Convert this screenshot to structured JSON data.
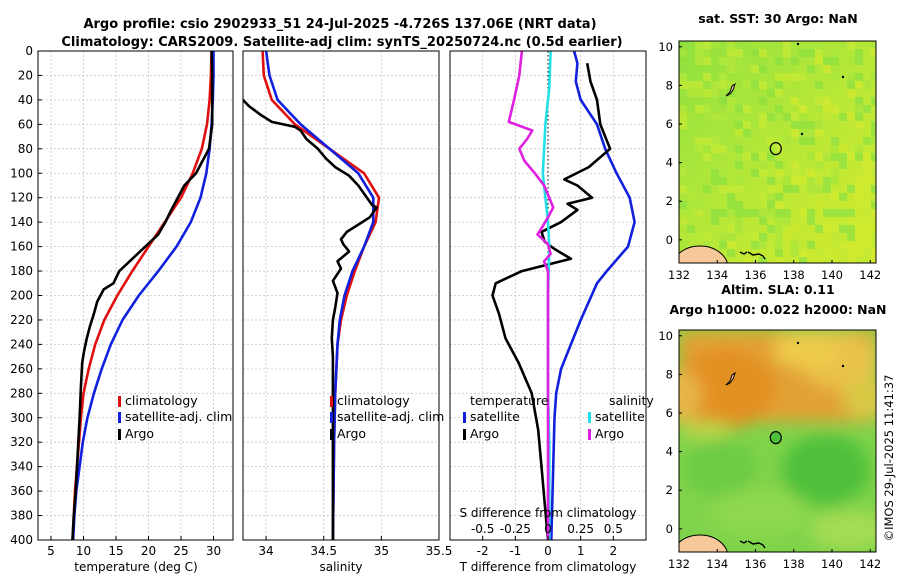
{
  "header": {
    "line1": "Argo profile: csio 2902933_51 24-Jul-2025 -4.726S 137.06E (NRT data)",
    "line2": "Climatology: CARS2009. Satellite-adj clim: synTS_20250724.nc (0.5d earlier)"
  },
  "watermark": "©IMOS 29-Jul-2025 11:41:37",
  "colors": {
    "red": "#e01010",
    "blue": "#1020dd",
    "black": "#000000",
    "cyan": "#22e0e8",
    "magenta": "#e020e0",
    "coast": "#f6c89a"
  },
  "chart_data": [
    {
      "type": "line",
      "name": "temperature",
      "xlabel": "temperature (deg C)",
      "ylabel": "depth",
      "xlim": [
        3,
        33
      ],
      "ylim": [
        400,
        0
      ],
      "xticks": [
        "5",
        "10",
        "15",
        "20",
        "25",
        "30"
      ],
      "yticks": [
        "0",
        "20",
        "40",
        "60",
        "80",
        "100",
        "120",
        "140",
        "160",
        "180",
        "200",
        "220",
        "240",
        "260",
        "280",
        "300",
        "320",
        "340",
        "360",
        "380",
        "400"
      ],
      "legend": [
        "climatology",
        "satellite-adj. clim",
        "Argo"
      ],
      "series": [
        {
          "name": "climatology",
          "color": "#e01010",
          "points": [
            [
              29.7,
              0
            ],
            [
              29.6,
              20
            ],
            [
              29.4,
              40
            ],
            [
              29.0,
              60
            ],
            [
              28.2,
              80
            ],
            [
              26.8,
              100
            ],
            [
              25,
              120
            ],
            [
              22.5,
              140
            ],
            [
              20,
              160
            ],
            [
              17.5,
              180
            ],
            [
              15.2,
              200
            ],
            [
              13.2,
              220
            ],
            [
              11.8,
              240
            ],
            [
              10.8,
              260
            ],
            [
              10.0,
              280
            ],
            [
              9.6,
              300
            ],
            [
              9.3,
              320
            ],
            [
              9.0,
              340
            ],
            [
              8.7,
              360
            ],
            [
              8.5,
              380
            ],
            [
              8.3,
              400
            ]
          ]
        },
        {
          "name": "satellite-adj. clim",
          "color": "#1020dd",
          "points": [
            [
              30.0,
              0
            ],
            [
              30.0,
              20
            ],
            [
              29.9,
              40
            ],
            [
              29.7,
              60
            ],
            [
              29.4,
              80
            ],
            [
              28.9,
              100
            ],
            [
              28,
              120
            ],
            [
              26.5,
              140
            ],
            [
              24.3,
              160
            ],
            [
              21.5,
              180
            ],
            [
              18.5,
              200
            ],
            [
              16,
              220
            ],
            [
              14.2,
              240
            ],
            [
              12.8,
              260
            ],
            [
              11.6,
              280
            ],
            [
              10.6,
              300
            ],
            [
              9.9,
              320
            ],
            [
              9.4,
              340
            ],
            [
              8.9,
              360
            ],
            [
              8.6,
              380
            ],
            [
              8.4,
              400
            ]
          ]
        },
        {
          "name": "Argo",
          "color": "#000000",
          "points": [
            [
              29.7,
              0
            ],
            [
              29.8,
              20
            ],
            [
              29.8,
              40
            ],
            [
              29.8,
              60
            ],
            [
              29.3,
              80
            ],
            [
              28.3,
              90
            ],
            [
              27.3,
              100
            ],
            [
              25.5,
              110
            ],
            [
              24.5,
              120
            ],
            [
              23.5,
              130
            ],
            [
              22.6,
              140
            ],
            [
              21.5,
              150
            ],
            [
              19.5,
              160
            ],
            [
              17.5,
              170
            ],
            [
              15.5,
              180
            ],
            [
              14.6,
              190
            ],
            [
              13.1,
              195
            ],
            [
              12.1,
              205
            ],
            [
              11.6,
              215
            ],
            [
              11.0,
              225
            ],
            [
              10.5,
              235
            ],
            [
              10.1,
              245
            ],
            [
              9.8,
              255
            ],
            [
              9.6,
              275
            ],
            [
              9.4,
              300
            ],
            [
              9.2,
              320
            ],
            [
              9.0,
              340
            ],
            [
              8.8,
              360
            ],
            [
              8.5,
              380
            ],
            [
              8.3,
              400
            ]
          ]
        }
      ]
    },
    {
      "type": "line",
      "name": "salinity",
      "xlabel": "salinity",
      "xlim": [
        33.8,
        35.5
      ],
      "ylim": [
        400,
        0
      ],
      "xticks": [
        "34",
        "34.5",
        "35",
        "35.5"
      ],
      "legend": [
        "climatology",
        "satellite-adj. clim",
        "Argo"
      ],
      "series": [
        {
          "name": "climatology",
          "color": "#e01010",
          "points": [
            [
              33.97,
              0
            ],
            [
              33.98,
              20
            ],
            [
              34.05,
              40
            ],
            [
              34.25,
              60
            ],
            [
              34.55,
              80
            ],
            [
              34.85,
              100
            ],
            [
              34.98,
              120
            ],
            [
              34.95,
              140
            ],
            [
              34.85,
              160
            ],
            [
              34.77,
              180
            ],
            [
              34.7,
              200
            ],
            [
              34.65,
              220
            ],
            [
              34.62,
              240
            ],
            [
              34.6,
              280
            ],
            [
              34.59,
              320
            ],
            [
              34.58,
              400
            ]
          ]
        },
        {
          "name": "satellite-adj. clim",
          "color": "#1020dd",
          "points": [
            [
              34.0,
              0
            ],
            [
              34.03,
              20
            ],
            [
              34.1,
              40
            ],
            [
              34.3,
              60
            ],
            [
              34.55,
              80
            ],
            [
              34.8,
              100
            ],
            [
              34.93,
              120
            ],
            [
              34.93,
              140
            ],
            [
              34.85,
              160
            ],
            [
              34.75,
              180
            ],
            [
              34.68,
              200
            ],
            [
              34.64,
              220
            ],
            [
              34.62,
              240
            ],
            [
              34.6,
              280
            ],
            [
              34.59,
              320
            ],
            [
              34.58,
              400
            ]
          ]
        },
        {
          "name": "Argo",
          "color": "#000000",
          "points": [
            [
              33.78,
              38
            ],
            [
              33.85,
              45
            ],
            [
              33.95,
              52
            ],
            [
              34.05,
              58
            ],
            [
              34.25,
              62
            ],
            [
              34.3,
              65
            ],
            [
              34.35,
              72
            ],
            [
              34.45,
              80
            ],
            [
              34.52,
              88
            ],
            [
              34.6,
              95
            ],
            [
              34.72,
              102
            ],
            [
              34.8,
              110
            ],
            [
              34.86,
              118
            ],
            [
              34.92,
              126
            ],
            [
              34.96,
              128
            ],
            [
              34.9,
              136
            ],
            [
              34.8,
              142
            ],
            [
              34.7,
              148
            ],
            [
              34.65,
              154
            ],
            [
              34.67,
              158
            ],
            [
              34.72,
              164
            ],
            [
              34.62,
              172
            ],
            [
              34.65,
              178
            ],
            [
              34.58,
              188
            ],
            [
              34.62,
              198
            ],
            [
              34.6,
              210
            ],
            [
              34.58,
              220
            ],
            [
              34.57,
              235
            ],
            [
              34.58,
              250
            ],
            [
              34.58,
              300
            ],
            [
              34.58,
              340
            ],
            [
              34.58,
              400
            ]
          ]
        }
      ]
    },
    {
      "type": "line",
      "name": "difference from climatology",
      "xlabel": "T difference from climatology",
      "x2label": "S difference from climatology",
      "xlim": [
        -3,
        3
      ],
      "ylim": [
        400,
        0
      ],
      "xticks": [
        "-2",
        "-1",
        "0",
        "1",
        "2"
      ],
      "x2ticks": [
        "-0.5",
        "-0.25",
        "0",
        "0.25",
        "0.5"
      ],
      "legend_titles": [
        "temperature",
        "salinity"
      ],
      "legend": [
        "satellite",
        "Argo",
        "satellite",
        "Argo"
      ],
      "series": [
        {
          "name": "temperature satellite",
          "color": "#1020dd",
          "axis": "T",
          "points": [
            [
              0.8,
              0
            ],
            [
              0.9,
              10
            ],
            [
              0.85,
              25
            ],
            [
              1.0,
              40
            ],
            [
              1.5,
              60
            ],
            [
              1.75,
              80
            ],
            [
              2.1,
              100
            ],
            [
              2.5,
              120
            ],
            [
              2.65,
              140
            ],
            [
              2.45,
              160
            ],
            [
              1.8,
              180
            ],
            [
              1.5,
              190
            ],
            [
              1.0,
              220
            ],
            [
              0.7,
              240
            ],
            [
              0.4,
              260
            ],
            [
              0.25,
              280
            ],
            [
              0.2,
              300
            ],
            [
              0.15,
              350
            ],
            [
              0.1,
              400
            ]
          ]
        },
        {
          "name": "temperature Argo",
          "color": "#000000",
          "axis": "T",
          "points": [
            [
              1.2,
              10
            ],
            [
              1.3,
              25
            ],
            [
              1.5,
              40
            ],
            [
              1.6,
              60
            ],
            [
              1.9,
              80
            ],
            [
              1.25,
              95
            ],
            [
              0.5,
              105
            ],
            [
              0.9,
              110
            ],
            [
              1.35,
              120
            ],
            [
              0.6,
              125
            ],
            [
              0.9,
              130
            ],
            [
              0.4,
              140
            ],
            [
              -0.2,
              148
            ],
            [
              -0.1,
              156
            ],
            [
              0.2,
              162
            ],
            [
              0.7,
              170
            ],
            [
              -0.8,
              180
            ],
            [
              -1.6,
              190
            ],
            [
              -1.7,
              200
            ],
            [
              -1.5,
              215
            ],
            [
              -1.3,
              235
            ],
            [
              -0.9,
              255
            ],
            [
              -0.5,
              280
            ],
            [
              -0.3,
              310
            ],
            [
              -0.2,
              340
            ],
            [
              -0.1,
              370
            ],
            [
              0,
              400
            ]
          ]
        },
        {
          "name": "salinity satellite",
          "color": "#22e0e8",
          "axis": "S",
          "points": [
            [
              0.02,
              0
            ],
            [
              0.01,
              30
            ],
            [
              -0.02,
              60
            ],
            [
              -0.03,
              80
            ],
            [
              -0.04,
              100
            ],
            [
              -0.02,
              120
            ],
            [
              0.0,
              140
            ],
            [
              0.01,
              160
            ],
            [
              0.0,
              200
            ],
            [
              0.0,
              240
            ],
            [
              0.0,
              280
            ],
            [
              0.01,
              320
            ],
            [
              0.01,
              360
            ],
            [
              0.01,
              400
            ]
          ]
        },
        {
          "name": "salinity Argo",
          "color": "#e020e0",
          "axis": "S",
          "points": [
            [
              -0.2,
              0
            ],
            [
              -0.22,
              20
            ],
            [
              -0.26,
              40
            ],
            [
              -0.3,
              58
            ],
            [
              -0.12,
              65
            ],
            [
              -0.16,
              72
            ],
            [
              -0.22,
              80
            ],
            [
              -0.18,
              90
            ],
            [
              -0.1,
              100
            ],
            [
              -0.03,
              110
            ],
            [
              0.01,
              120
            ],
            [
              0.04,
              128
            ],
            [
              0.0,
              136
            ],
            [
              -0.05,
              145
            ],
            [
              -0.08,
              150
            ],
            [
              0.0,
              158
            ],
            [
              0.02,
              166
            ],
            [
              -0.03,
              172
            ],
            [
              0.0,
              180
            ],
            [
              0.0,
              220
            ],
            [
              0.0,
              300
            ],
            [
              0.0,
              400
            ]
          ]
        }
      ]
    },
    {
      "type": "heatmap",
      "name": "sst map",
      "title": "sat. SST: 30 Argo: NaN",
      "xlim": [
        132,
        142.3
      ],
      "ylim": [
        -1.2,
        10.3
      ],
      "xticks": [
        "132",
        "134",
        "136",
        "138",
        "140",
        "142"
      ],
      "yticks": [
        "0",
        "2",
        "4",
        "6",
        "8",
        "10"
      ],
      "argo_location": [
        137.06,
        4.726
      ]
    },
    {
      "type": "heatmap",
      "name": "sla map",
      "title": "Altim. SLA: 0.11",
      "subtitle": "Argo h1000: 0.022 h2000: NaN",
      "xlim": [
        132,
        142.3
      ],
      "ylim": [
        -1.2,
        10.3
      ],
      "xticks": [
        "132",
        "134",
        "136",
        "138",
        "140",
        "142"
      ],
      "yticks": [
        "0",
        "2",
        "4",
        "6",
        "8",
        "10"
      ],
      "argo_location": [
        137.06,
        4.726
      ]
    }
  ]
}
